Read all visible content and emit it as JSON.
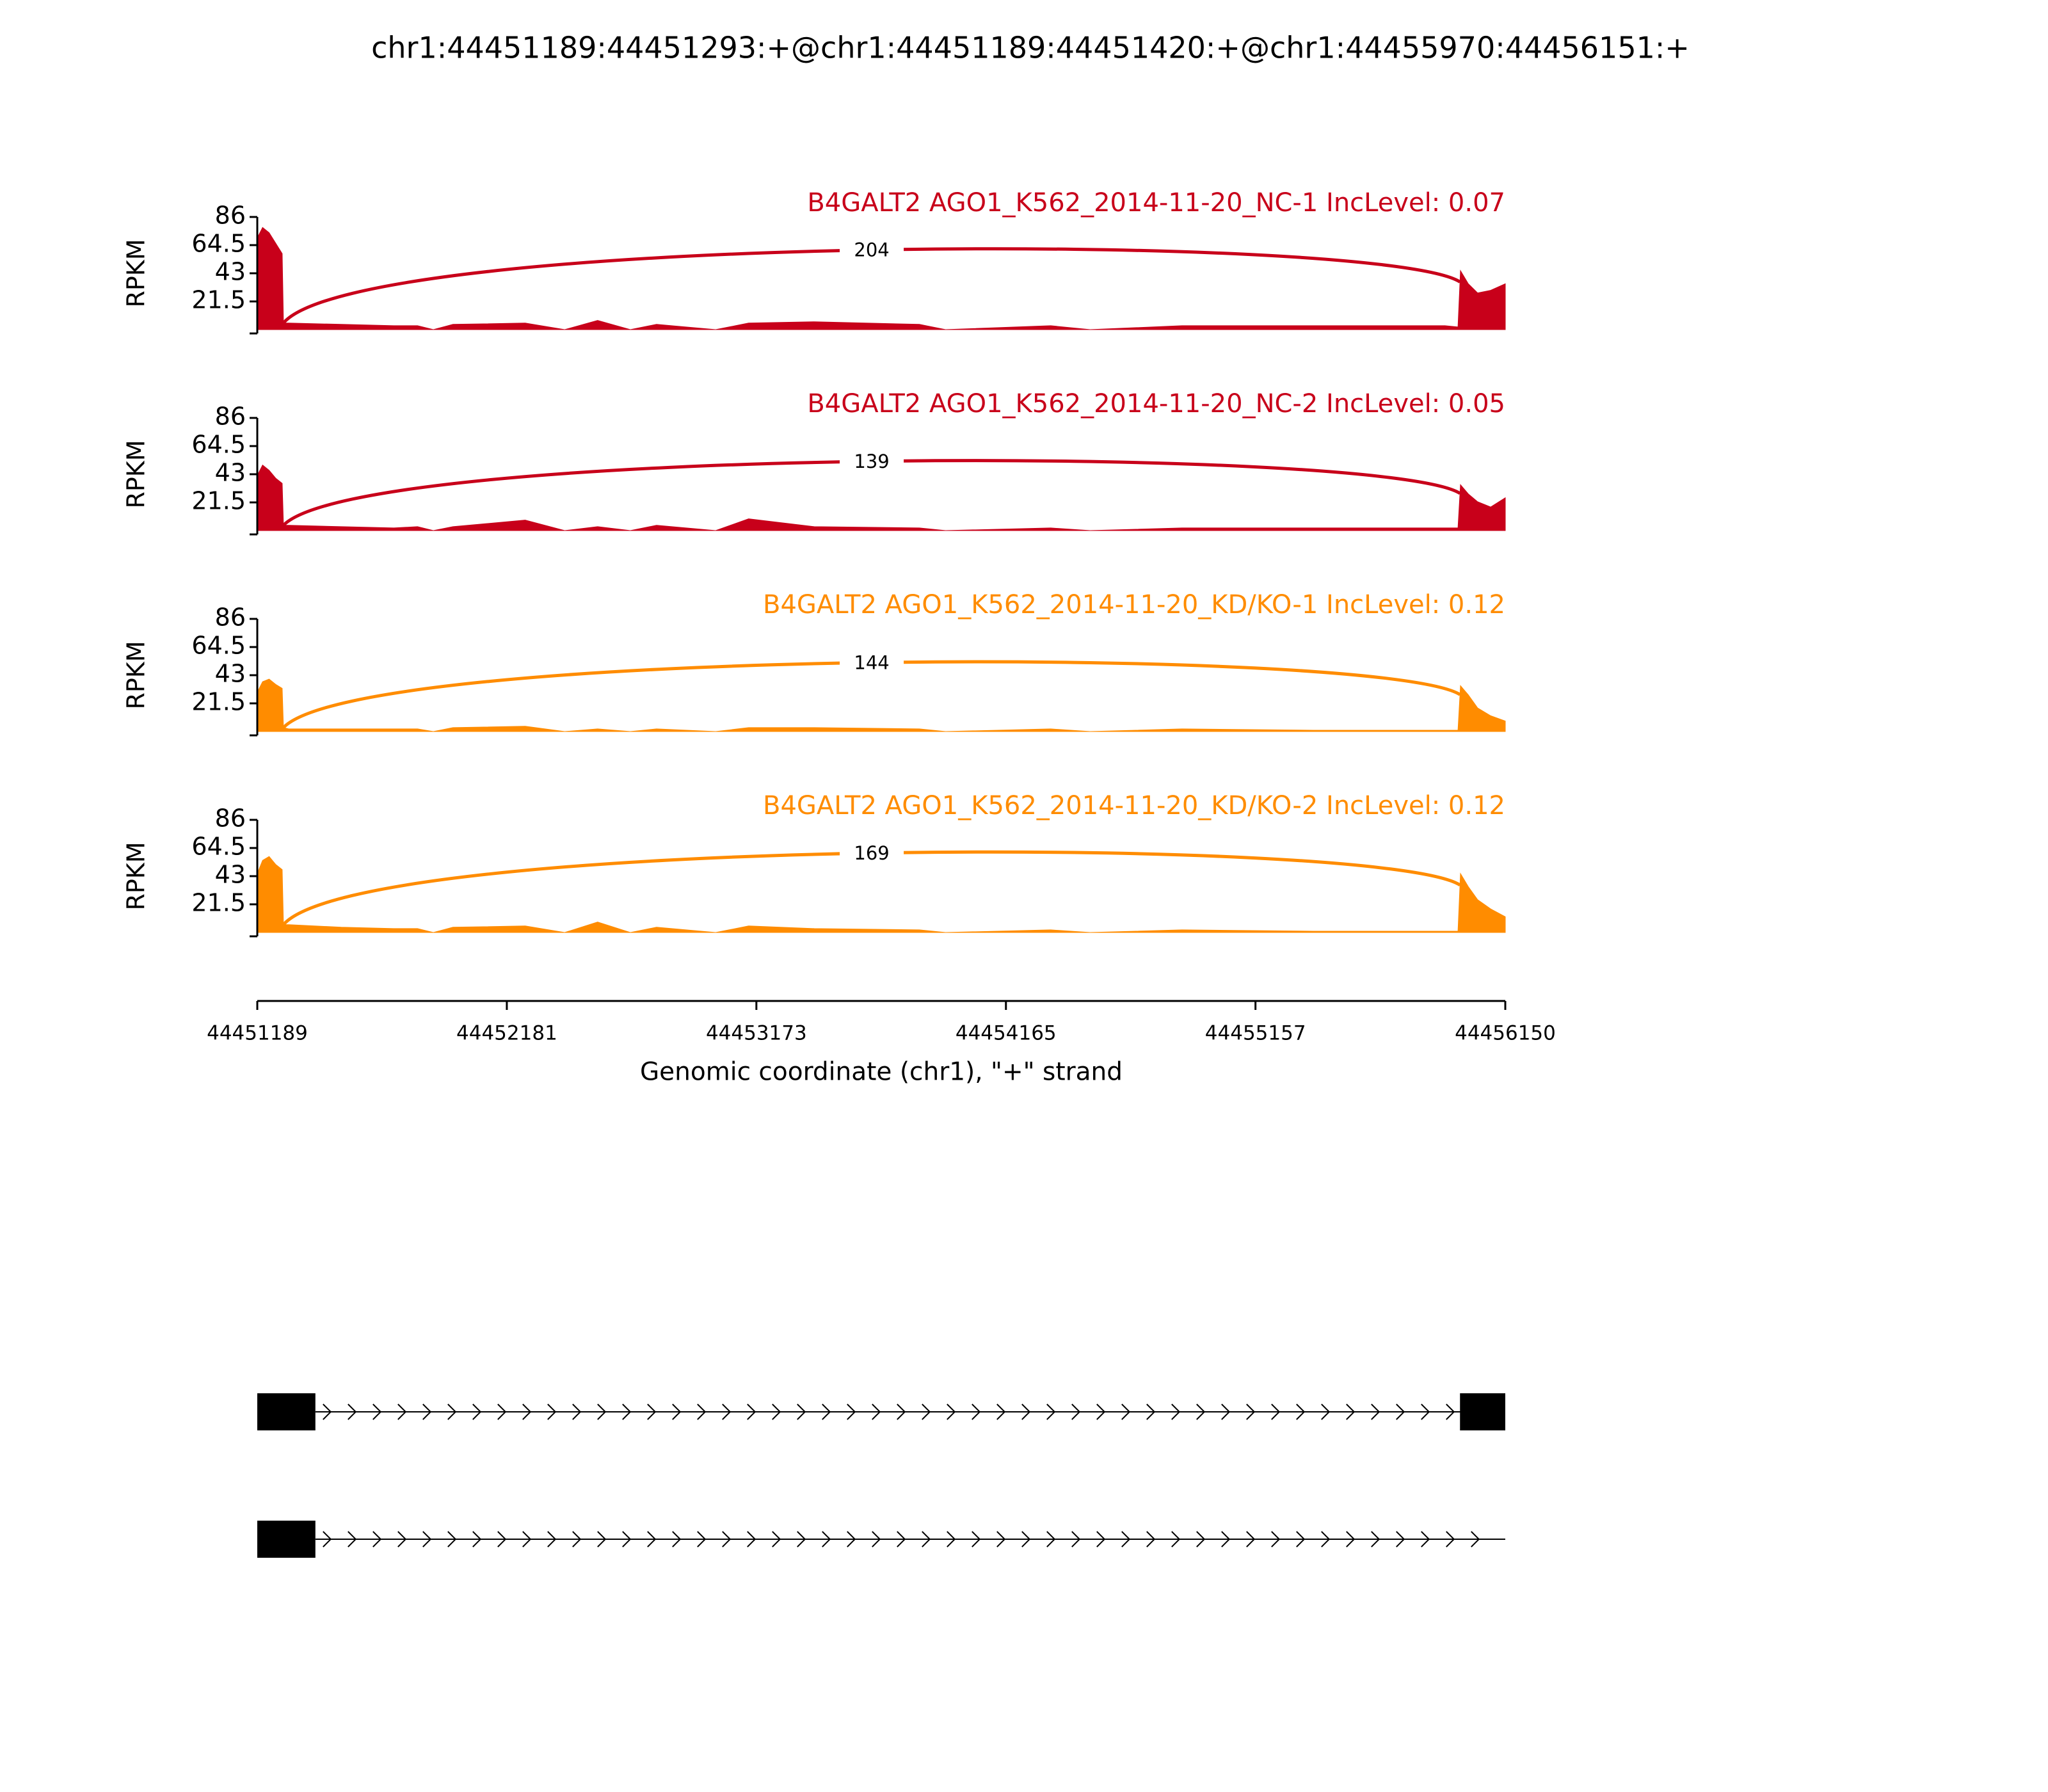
{
  "chart_data": {
    "type": "sashimi",
    "title": "chr1:44451189:44451293:+@chr1:44451189:44451420:+@chr1:44455970:44456151:+",
    "xlabel": "Genomic coordinate (chr1), \"+\" strand",
    "ylabel": "RPKM",
    "xlim": [
      44451189,
      44456150
    ],
    "xticks": [
      44451189,
      44452181,
      44453173,
      44454165,
      44455157,
      44456150
    ],
    "ylim": [
      0,
      86
    ],
    "yticks": [
      21.5,
      43,
      64.5,
      86
    ],
    "junction_span": [
      44451293,
      44455970
    ],
    "x": [
      44451189,
      44451210,
      44451236,
      44451262,
      44451288,
      44451293,
      44451314,
      44451523,
      44451732,
      44451826,
      44451889,
      44451967,
      44452254,
      44452411,
      44452542,
      44452672,
      44452776,
      44453011,
      44453142,
      44453403,
      44453821,
      44453925,
      44454343,
      44454500,
      44454865,
      44455387,
      44455910,
      44455962,
      44455972,
      44456003,
      44456040,
      44456092,
      44456150
    ],
    "tracks": [
      {
        "name": "B4GALT2 AGO1_K562_2014-11-20_NC-1 IncLevel: 0.07",
        "color": "#c8001a",
        "junction_count": 204,
        "values": [
          70,
          78,
          74,
          66,
          58,
          5,
          5,
          4,
          3,
          3,
          0,
          4,
          5,
          0,
          7,
          0,
          4,
          0,
          5,
          6,
          4,
          0,
          3,
          0,
          3,
          3,
          3,
          2,
          45,
          35,
          28,
          30,
          35
        ]
      },
      {
        "name": "B4GALT2 AGO1_K562_2014-11-20_NC-2 IncLevel: 0.05",
        "color": "#c8001a",
        "junction_count": 139,
        "values": [
          42,
          50,
          46,
          40,
          36,
          4,
          4,
          3,
          2,
          3,
          0,
          3,
          8,
          0,
          3,
          0,
          4,
          0,
          9,
          3,
          2,
          0,
          2,
          0,
          2,
          2,
          2,
          2,
          35,
          28,
          22,
          18,
          25
        ]
      },
      {
        "name": "B4GALT2 AGO1_K562_2014-11-20_KD/KO-1 IncLevel: 0.12",
        "color": "#ff8c00",
        "junction_count": 144,
        "values": [
          30,
          38,
          40,
          36,
          33,
          3,
          2,
          2,
          2,
          2,
          0,
          3,
          4,
          0,
          2,
          0,
          2,
          0,
          3,
          3,
          2,
          0,
          2,
          0,
          2,
          1,
          1,
          1,
          35,
          28,
          18,
          12,
          8
        ]
      },
      {
        "name": "B4GALT2 AGO1_K562_2014-11-20_KD/KO-2 IncLevel: 0.12",
        "color": "#ff8c00",
        "junction_count": 169,
        "values": [
          45,
          55,
          58,
          52,
          48,
          6,
          6,
          4,
          3,
          3,
          0,
          4,
          5,
          0,
          8,
          0,
          4,
          0,
          5,
          3,
          2,
          0,
          2,
          0,
          2,
          1,
          1,
          1,
          45,
          35,
          25,
          18,
          12
        ]
      }
    ],
    "transcripts": [
      {
        "exons": [
          [
            44451189,
            44451420
          ],
          [
            44455970,
            44456151
          ]
        ]
      },
      {
        "exons": [
          [
            44451189,
            44451420
          ]
        ]
      }
    ]
  }
}
